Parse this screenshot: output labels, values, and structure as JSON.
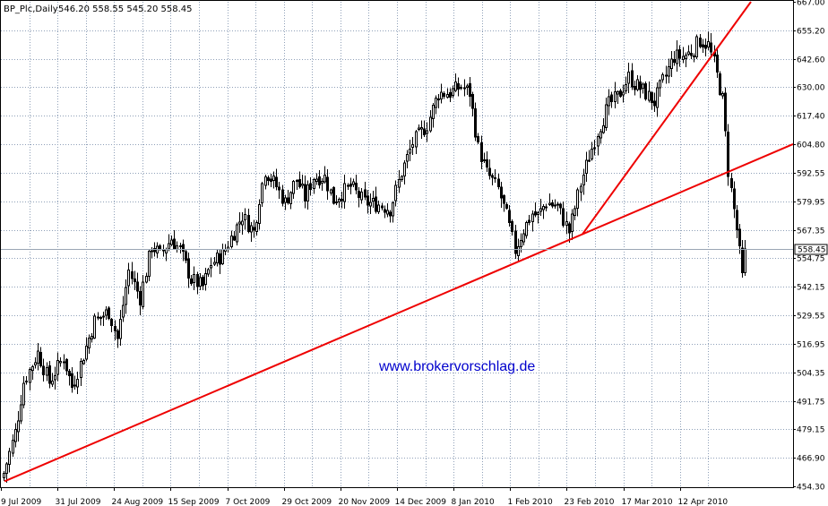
{
  "chart_header": {
    "symbol": "BP_Plc,Daily",
    "ohlc": "546.20 558.55 545.20 558.45"
  },
  "watermark": "www.brokervorschlag.de",
  "current_price": "558.45",
  "chart_data": {
    "type": "candlestick",
    "title": "BP_Plc,Daily",
    "ylim": [
      454.3,
      667.0
    ],
    "y_ticks": [
      "667.00",
      "655.20",
      "642.60",
      "630.00",
      "617.40",
      "604.80",
      "592.55",
      "579.95",
      "567.35",
      "554.75",
      "542.15",
      "529.55",
      "516.95",
      "504.35",
      "491.75",
      "479.15",
      "466.90",
      "454.30"
    ],
    "x_ticks": [
      "9 Jul 2009",
      "31 Jul 2009",
      "24 Aug 2009",
      "15 Sep 2009",
      "7 Oct 2009",
      "29 Oct 2009",
      "20 Nov 2009",
      "14 Dec 2009",
      "8 Jan 2010",
      "1 Feb 2010",
      "23 Feb 2010",
      "17 Mar 2010",
      "12 Apr 2010"
    ],
    "grid": true,
    "anchors": [
      [
        0,
        460
      ],
      [
        4,
        478
      ],
      [
        7,
        500
      ],
      [
        12,
        513
      ],
      [
        16,
        500
      ],
      [
        21,
        511
      ],
      [
        24,
        498
      ],
      [
        27,
        508
      ],
      [
        32,
        527
      ],
      [
        37,
        531
      ],
      [
        40,
        519
      ],
      [
        44,
        549
      ],
      [
        48,
        537
      ],
      [
        52,
        560
      ],
      [
        55,
        556
      ],
      [
        59,
        563
      ],
      [
        62,
        558
      ],
      [
        66,
        545
      ],
      [
        70,
        542
      ],
      [
        73,
        552
      ],
      [
        77,
        556
      ],
      [
        81,
        566
      ],
      [
        84,
        573
      ],
      [
        88,
        566
      ],
      [
        90,
        581
      ],
      [
        92,
        593
      ],
      [
        96,
        586
      ],
      [
        99,
        579
      ],
      [
        103,
        589
      ],
      [
        106,
        581
      ],
      [
        109,
        590
      ],
      [
        113,
        590
      ],
      [
        116,
        580
      ],
      [
        119,
        583
      ],
      [
        122,
        586
      ],
      [
        127,
        579
      ],
      [
        132,
        578
      ],
      [
        136,
        576
      ],
      [
        140,
        592
      ],
      [
        144,
        605
      ],
      [
        149,
        613
      ],
      [
        153,
        627
      ],
      [
        157,
        627
      ],
      [
        161,
        630
      ],
      [
        164,
        627
      ],
      [
        167,
        603
      ],
      [
        170,
        592
      ],
      [
        174,
        585
      ],
      [
        177,
        573
      ],
      [
        180,
        558
      ],
      [
        183,
        567
      ],
      [
        186,
        574
      ],
      [
        188,
        573
      ],
      [
        191,
        579
      ],
      [
        195,
        577
      ],
      [
        199,
        566
      ],
      [
        203,
        587
      ],
      [
        206,
        599
      ],
      [
        209,
        610
      ],
      [
        213,
        622
      ],
      [
        216,
        625
      ],
      [
        220,
        634
      ],
      [
        222,
        631
      ],
      [
        225,
        628
      ],
      [
        229,
        623
      ],
      [
        232,
        632
      ],
      [
        236,
        643
      ],
      [
        239,
        643
      ],
      [
        242,
        645
      ],
      [
        245,
        650
      ],
      [
        248,
        648
      ],
      [
        250,
        640
      ],
      [
        253,
        624
      ],
      [
        255,
        593
      ],
      [
        258,
        567
      ],
      [
        260,
        546
      ],
      [
        261,
        558.45
      ]
    ],
    "trendlines": [
      {
        "from": [
          "9 Jul 2009",
          456.5
        ],
        "to": [
          "end",
          604.5
        ]
      },
      {
        "from": [
          "23 Feb 2010",
          565.0
        ],
        "to": [
          "end",
          667.0
        ]
      }
    ]
  }
}
